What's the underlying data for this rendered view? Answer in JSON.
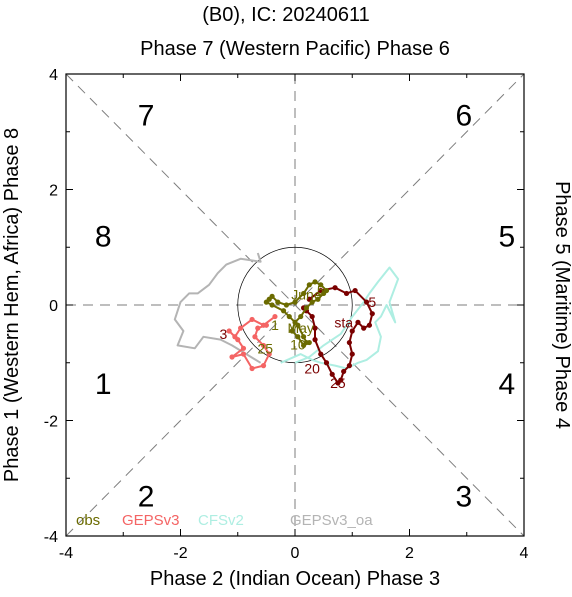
{
  "title": "(B0), IC: 20240611",
  "axis_top": "Phase 7 (Western Pacific) Phase 6",
  "axis_bottom": "Phase 2 (Indian Ocean) Phase 3",
  "axis_left": "Phase 1 (Western Hem, Africa) Phase 8",
  "axis_right": "Phase 5 (Maritime) Phase 4",
  "phase_labels": [
    {
      "text": "7",
      "x": -2.6,
      "y": 3.3
    },
    {
      "text": "6",
      "x": 2.95,
      "y": 3.3
    },
    {
      "text": "8",
      "x": -3.35,
      "y": 1.2
    },
    {
      "text": "5",
      "x": 3.7,
      "y": 1.2
    },
    {
      "text": "1",
      "x": -3.35,
      "y": -1.35
    },
    {
      "text": "4",
      "x": 3.7,
      "y": -1.35
    },
    {
      "text": "2",
      "x": -2.6,
      "y": -3.3
    },
    {
      "text": "3",
      "x": 2.95,
      "y": -3.3
    }
  ],
  "colors": {
    "obs": "#6b6b00",
    "gepsv3": "#f46464",
    "cfsv2": "#aeeee2",
    "gepsv3_oa": "#b4b4b4",
    "ensemble": "#7a0000",
    "dash": "#7d7d7d",
    "circle": "#000000"
  },
  "legend": [
    "obs",
    "GEPSv3",
    "CFSv2",
    "GEPSv3_oa"
  ],
  "chart_data": {
    "type": "line",
    "xlim": [
      -4,
      4
    ],
    "ylim": [
      -4,
      4
    ],
    "xticks": [
      "-4",
      "-2",
      "0",
      "2",
      "4"
    ],
    "yticks": [
      "-4",
      "-2",
      "0",
      "2",
      "4"
    ],
    "unit_circle": true,
    "series": [
      {
        "name": "GEPSv3_oa",
        "color_key": "gepsv3_oa",
        "markers": false,
        "x": [
          -0.65,
          -0.6,
          -0.95,
          -1.2,
          -1.35,
          -1.5,
          -1.7,
          -1.85,
          -2.0,
          -2.1,
          -1.95,
          -2.05,
          -1.75,
          -1.6,
          -1.3,
          -1.1,
          -0.85,
          -0.6
        ],
        "y": [
          0.9,
          0.75,
          0.8,
          0.7,
          0.55,
          0.35,
          0.2,
          0.2,
          0.05,
          -0.25,
          -0.45,
          -0.7,
          -0.75,
          -0.55,
          -0.6,
          -0.7,
          -0.85,
          -1.0
        ]
      },
      {
        "name": "CFSv2",
        "color_key": "cfsv2",
        "markers": false,
        "x": [
          -0.25,
          0.1,
          0.3,
          0.45,
          0.7,
          0.9,
          1.1,
          1.25,
          1.45,
          1.5,
          1.4,
          1.5,
          1.6,
          1.75,
          1.65,
          1.8,
          1.65,
          1.45,
          1.3,
          1.2,
          1.0,
          0.8,
          0.5,
          0.25,
          0.0
        ],
        "y": [
          -1.0,
          -0.85,
          -0.95,
          -1.0,
          -1.05,
          -1.1,
          -1.0,
          -0.95,
          -0.8,
          -0.55,
          -0.3,
          -0.2,
          0.0,
          -0.3,
          0.05,
          0.45,
          0.65,
          0.4,
          0.2,
          0.05,
          -0.2,
          -0.5,
          -0.7,
          -0.9,
          -1.0
        ]
      },
      {
        "name": "GEPSv3",
        "color_key": "gepsv3",
        "markers": true,
        "x": [
          -0.35,
          -0.55,
          -0.75,
          -0.95,
          -1.05,
          -1.15,
          -1.0,
          -0.9,
          -1.1,
          -0.9,
          -0.75,
          -0.55,
          -0.45,
          -0.55,
          -0.7,
          -0.65,
          -0.5
        ],
        "y": [
          -0.2,
          -0.35,
          -0.25,
          -0.4,
          -0.55,
          -0.45,
          -0.6,
          -0.75,
          -0.9,
          -0.85,
          -1.1,
          -1.05,
          -0.85,
          -0.7,
          -0.55,
          -0.4,
          -0.35
        ]
      },
      {
        "name": "ensemble",
        "color_key": "ensemble",
        "markers": true,
        "x": [
          0.25,
          0.45,
          0.7,
          0.9,
          1.05,
          1.25,
          1.35,
          1.3,
          1.2,
          1.1,
          1.0,
          0.95,
          1.0,
          0.95,
          0.85,
          0.8,
          0.75,
          0.65,
          0.55,
          0.45,
          0.35,
          0.35,
          0.3,
          0.2,
          0.15
        ],
        "y": [
          0.1,
          0.25,
          0.3,
          0.2,
          0.25,
          0.05,
          -0.15,
          -0.35,
          -0.4,
          -0.3,
          -0.45,
          -0.65,
          -0.85,
          -1.05,
          -1.15,
          -1.3,
          -1.35,
          -1.2,
          -1.0,
          -0.85,
          -0.6,
          -0.4,
          -0.2,
          -0.1,
          -0.05
        ]
      },
      {
        "name": "obs",
        "color_key": "obs",
        "markers": true,
        "x": [
          0.2,
          0.15,
          0.05,
          -0.1,
          -0.2,
          -0.4,
          -0.5,
          -0.45,
          -0.4,
          -0.3,
          -0.15,
          0.0,
          0.15,
          0.25,
          0.35,
          0.45,
          0.55,
          0.5,
          0.4,
          0.3,
          0.2,
          0.1,
          0.0,
          -0.05,
          0.05,
          0.15,
          0.25
        ],
        "y": [
          -0.65,
          -0.55,
          -0.35,
          -0.2,
          -0.1,
          0.0,
          0.05,
          0.1,
          0.15,
          0.05,
          0.0,
          0.05,
          0.2,
          0.35,
          0.4,
          0.35,
          0.25,
          0.2,
          0.1,
          0.05,
          -0.05,
          -0.2,
          -0.3,
          -0.45,
          -0.55,
          -0.7,
          -0.65
        ]
      }
    ],
    "annotations": [
      {
        "text": "June",
        "x": 0.2,
        "y": 0.18,
        "color_key": "obs"
      },
      {
        "text": "5",
        "x": 0.45,
        "y": 0.25,
        "color_key": "obs"
      },
      {
        "text": "May",
        "x": 0.1,
        "y": -0.4,
        "color_key": "obs"
      },
      {
        "text": "10",
        "x": 0.05,
        "y": -0.68,
        "color_key": "obs"
      },
      {
        "text": "25",
        "x": -0.52,
        "y": -0.75,
        "color_key": "obs"
      },
      {
        "text": "1",
        "x": -0.35,
        "y": -0.35,
        "color_key": "obs"
      },
      {
        "text": "3",
        "x": -1.25,
        "y": -0.5,
        "color_key": "ensemble"
      },
      {
        "text": "5",
        "x": 1.35,
        "y": 0.05,
        "color_key": "ensemble"
      },
      {
        "text": "sta",
        "x": 0.85,
        "y": -0.3,
        "color_key": "ensemble"
      },
      {
        "text": "20",
        "x": 0.3,
        "y": -1.1,
        "color_key": "ensemble"
      },
      {
        "text": "25",
        "x": 0.75,
        "y": -1.35,
        "color_key": "ensemble"
      }
    ]
  }
}
